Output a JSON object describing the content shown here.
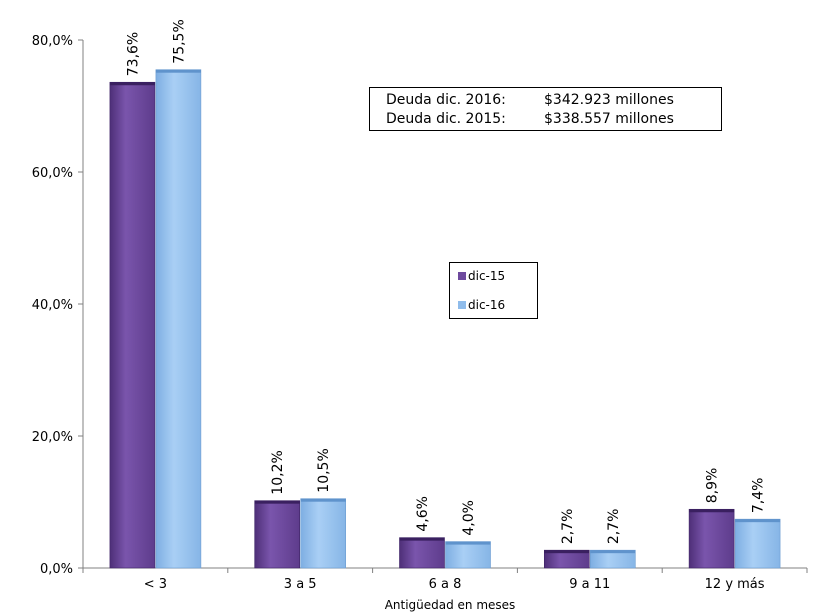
{
  "chart_data": {
    "type": "bar",
    "categories": [
      "< 3",
      "3 a 5",
      "6 a 8",
      "9 a 11",
      "12 y más"
    ],
    "series": [
      {
        "name": "dic-15",
        "values": [
          73.6,
          10.2,
          4.6,
          2.7,
          8.9
        ],
        "labels": [
          "73,6%",
          "10,2%",
          "4,6%",
          "2,7%",
          "8,9%"
        ],
        "color": "#6E4A9E"
      },
      {
        "name": "dic-16",
        "values": [
          75.5,
          10.5,
          4.0,
          2.7,
          7.4
        ],
        "labels": [
          "75,5%",
          "10,5%",
          "4,0%",
          "2,7%",
          "7,4%"
        ],
        "color": "#8FBCEB"
      }
    ],
    "xlabel": "Antigüedad en meses",
    "ylabel": "",
    "ylim": [
      0,
      80
    ],
    "yticks": [
      0,
      20,
      40,
      60,
      80
    ],
    "ytick_labels": [
      "0,0%",
      "20,0%",
      "40,0%",
      "60,0%",
      "80,0%"
    ],
    "grid": false,
    "legend_position": "center"
  },
  "infobox": {
    "rows": [
      {
        "label": "Deuda dic. 2016:",
        "value": "$342.923 millones"
      },
      {
        "label": "Deuda dic. 2015:",
        "value": "$338.557 millones"
      }
    ]
  },
  "legend": {
    "items": [
      {
        "label": "dic-15",
        "color": "#6E4A9E"
      },
      {
        "label": "dic-16",
        "color": "#8FBCEB"
      }
    ]
  }
}
